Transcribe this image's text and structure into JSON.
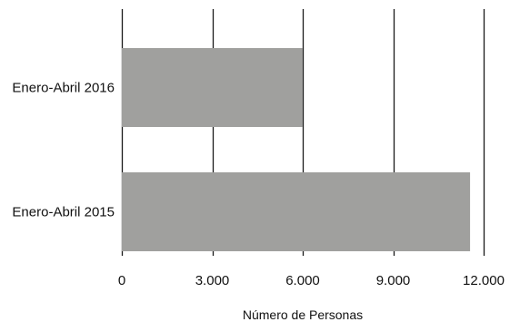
{
  "chart_data": {
    "type": "bar",
    "orientation": "horizontal",
    "categories": [
      "Enero-Abril 2016",
      "Enero-Abril 2015"
    ],
    "values": [
      6000,
      11550
    ],
    "xlabel": "Número de Personas",
    "ylabel": "",
    "xlim": [
      0,
      12000
    ],
    "x_ticks": [
      {
        "value": 0,
        "label": "0"
      },
      {
        "value": 3000,
        "label": "3.000"
      },
      {
        "value": 6000,
        "label": "6.000"
      },
      {
        "value": 9000,
        "label": "9.000"
      },
      {
        "value": 12000,
        "label": "12.000"
      }
    ],
    "grid": "vertical",
    "legend": "none",
    "colors": {
      "bar": "#a0a09e",
      "grid": "#1a1a1a",
      "text": "#111111"
    }
  }
}
